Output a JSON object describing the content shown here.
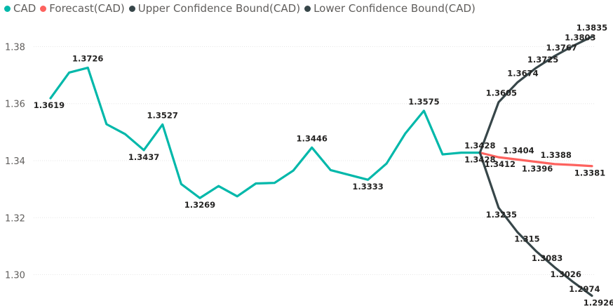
{
  "legend": {
    "items": [
      {
        "label": "CAD",
        "color": "#01B8AA"
      },
      {
        "label": "Forecast(CAD)",
        "color": "#FD625E"
      },
      {
        "label": "Upper Confidence Bound(CAD)",
        "color": "#374649"
      },
      {
        "label": "Lower Confidence Bound(CAD)",
        "color": "#374649"
      }
    ]
  },
  "chart_data": {
    "type": "line",
    "ylim": [
      1.2925,
      1.3875
    ],
    "yticks": [
      "1.30",
      "1.32",
      "1.34",
      "1.36",
      "1.38"
    ],
    "ytick_values": [
      1.3,
      1.32,
      1.34,
      1.36,
      1.38
    ],
    "gridlines": true,
    "legend_position": "top-left",
    "x": [
      1,
      2,
      3,
      4,
      5,
      6,
      7,
      8,
      9,
      10,
      11,
      12,
      13,
      14,
      15,
      16,
      17,
      18,
      19,
      20,
      21,
      22,
      23,
      24,
      25,
      26,
      27,
      28,
      29,
      30
    ],
    "series": [
      {
        "name": "CAD",
        "color": "#01B8AA",
        "x": [
          1,
          2,
          3,
          4,
          5,
          6,
          7,
          8,
          9,
          10,
          11,
          12,
          13,
          14,
          15,
          16,
          17,
          18,
          19,
          20,
          21,
          22,
          23,
          24
        ],
        "values": [
          1.3619,
          1.3709,
          1.3726,
          1.3528,
          1.3493,
          1.3437,
          1.3527,
          1.3318,
          1.3269,
          1.3311,
          1.3275,
          1.332,
          1.3322,
          1.3365,
          1.3446,
          1.3367,
          1.335,
          1.3333,
          1.339,
          1.3495,
          1.3575,
          1.3422,
          1.3428,
          1.3428
        ],
        "labels": {
          "1": "1.3619",
          "3": "1.3726",
          "6": "1.3437",
          "7": "1.3527",
          "9": "1.3269",
          "15": "1.3446",
          "18": "1.3333",
          "21": "1.3575"
        }
      },
      {
        "name": "Forecast(CAD)",
        "color": "#FD625E",
        "x": [
          24,
          25,
          26,
          27,
          28,
          29,
          30
        ],
        "values": [
          1.3428,
          1.3412,
          1.3404,
          1.3396,
          1.3388,
          1.3385,
          1.3381
        ],
        "labels": {
          "25": "1.3412",
          "26": "1.3404",
          "27": "1.3396",
          "28": "1.3388",
          "30": "1.3381"
        }
      },
      {
        "name": "Upper Confidence Bound(CAD)",
        "color": "#374649",
        "x": [
          24,
          25,
          26,
          27,
          28,
          29,
          30
        ],
        "values": [
          1.3428,
          1.3605,
          1.3674,
          1.3725,
          1.3767,
          1.3803,
          1.3835
        ],
        "labels": {
          "24": "1.3428",
          "25": "1.3605",
          "26": "1.3674",
          "27": "1.3725",
          "28": "1.3767",
          "29": "1.3803",
          "30": "1.3835"
        }
      },
      {
        "name": "Lower Confidence Bound(CAD)",
        "color": "#374649",
        "x": [
          24,
          25,
          26,
          27,
          28,
          29,
          30
        ],
        "values": [
          1.3428,
          1.3235,
          1.315,
          1.3083,
          1.3026,
          1.2974,
          1.2926
        ],
        "labels": {
          "24": "1.3428",
          "25": "1.3235",
          "26": "1.315",
          "27": "1.3083",
          "28": "1.3026",
          "29": "1.2974",
          "30": "1.2926"
        }
      }
    ]
  }
}
